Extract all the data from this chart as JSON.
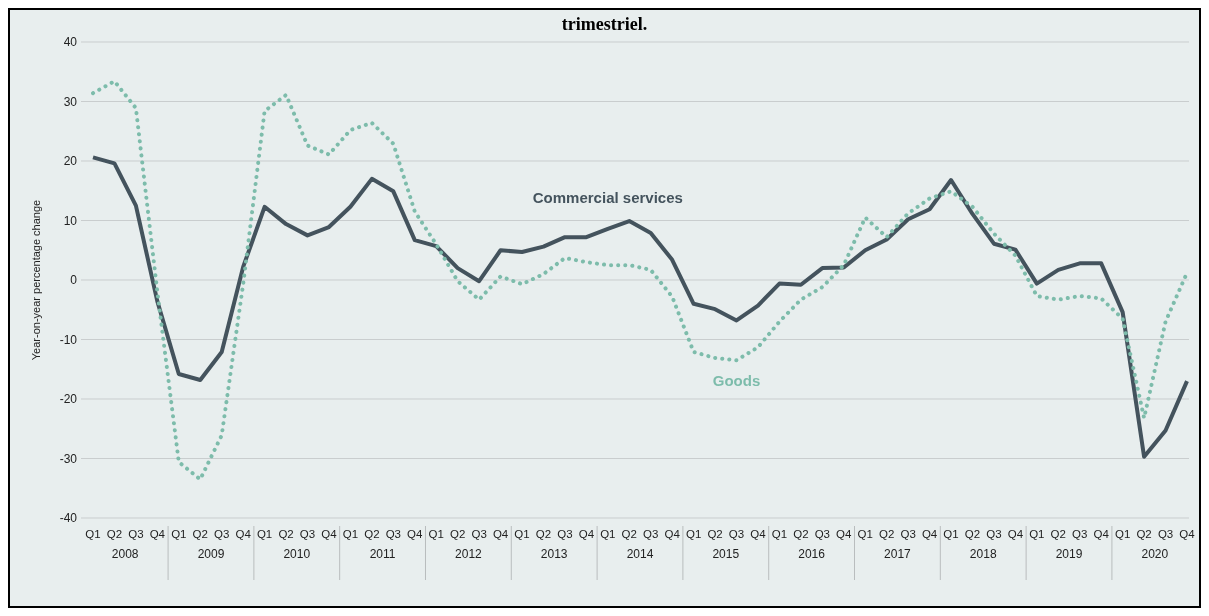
{
  "chart_data": {
    "type": "line",
    "title": "trimestriel.",
    "ylabel": "Year-on-year percentage change",
    "categories": [
      "Q1",
      "Q2",
      "Q3",
      "Q4",
      "Q1",
      "Q2",
      "Q3",
      "Q4",
      "Q1",
      "Q2",
      "Q3",
      "Q4",
      "Q1",
      "Q2",
      "Q3",
      "Q4",
      "Q1",
      "Q2",
      "Q3",
      "Q4",
      "Q1",
      "Q2",
      "Q3",
      "Q4",
      "Q1",
      "Q2",
      "Q3",
      "Q4",
      "Q1",
      "Q2",
      "Q3",
      "Q4",
      "Q1",
      "Q2",
      "Q3",
      "Q4",
      "Q1",
      "Q2",
      "Q3",
      "Q4",
      "Q1",
      "Q2",
      "Q3",
      "Q4",
      "Q1",
      "Q2",
      "Q3",
      "Q4",
      "Q1",
      "Q2",
      "Q3",
      "Q4"
    ],
    "annotations": [
      "2008",
      "2009",
      "2010",
      "2011",
      "2012",
      "2013",
      "2014",
      "2015",
      "2016",
      "2017",
      "2018",
      "2019",
      "2020"
    ],
    "series": [
      {
        "name": "Commercial services",
        "color": "#44535d",
        "line_style": "solid",
        "values": [
          20.6,
          19.6,
          12.5,
          -3.6,
          -15.8,
          -16.8,
          -12.1,
          2.2,
          12.3,
          9.4,
          7.5,
          8.9,
          12.3,
          17.0,
          14.9,
          6.7,
          5.7,
          2.0,
          -0.2,
          5.0,
          4.7,
          5.6,
          7.2,
          7.2,
          8.6,
          9.9,
          7.9,
          3.4,
          -4.0,
          -4.9,
          -6.8,
          -4.3,
          -0.6,
          -0.8,
          2.0,
          2.1,
          5.0,
          6.8,
          10.2,
          11.9,
          16.8,
          11.1,
          6.1,
          5.1,
          -0.6,
          1.7,
          2.8,
          2.8,
          -5.4,
          -29.7,
          -25.3,
          -17.0
        ]
      },
      {
        "name": "Goods",
        "color": "#7dbcab",
        "line_style": "dotted",
        "values": [
          31.4,
          33.4,
          28.9,
          -2.0,
          -30.6,
          -33.5,
          -26.1,
          -0.7,
          28.4,
          31.1,
          22.6,
          21.1,
          25.2,
          26.4,
          22.9,
          11.5,
          6.0,
          -0.2,
          -3.3,
          0.6,
          -0.7,
          1.0,
          3.7,
          3.0,
          2.5,
          2.5,
          1.7,
          -2.8,
          -12.1,
          -13.1,
          -13.5,
          -11.3,
          -7.0,
          -3.3,
          -1.2,
          2.5,
          10.5,
          7.2,
          11.2,
          13.7,
          14.9,
          12.3,
          7.8,
          4.1,
          -2.7,
          -3.3,
          -2.7,
          -3.1,
          -6.5,
          -23.2,
          -7.0,
          1.2
        ]
      }
    ],
    "ylim": [
      -40,
      40
    ],
    "yticks": [
      -40,
      -30,
      -20,
      -10,
      0,
      10,
      20,
      30,
      40
    ],
    "grid": "y",
    "marker": "none"
  }
}
